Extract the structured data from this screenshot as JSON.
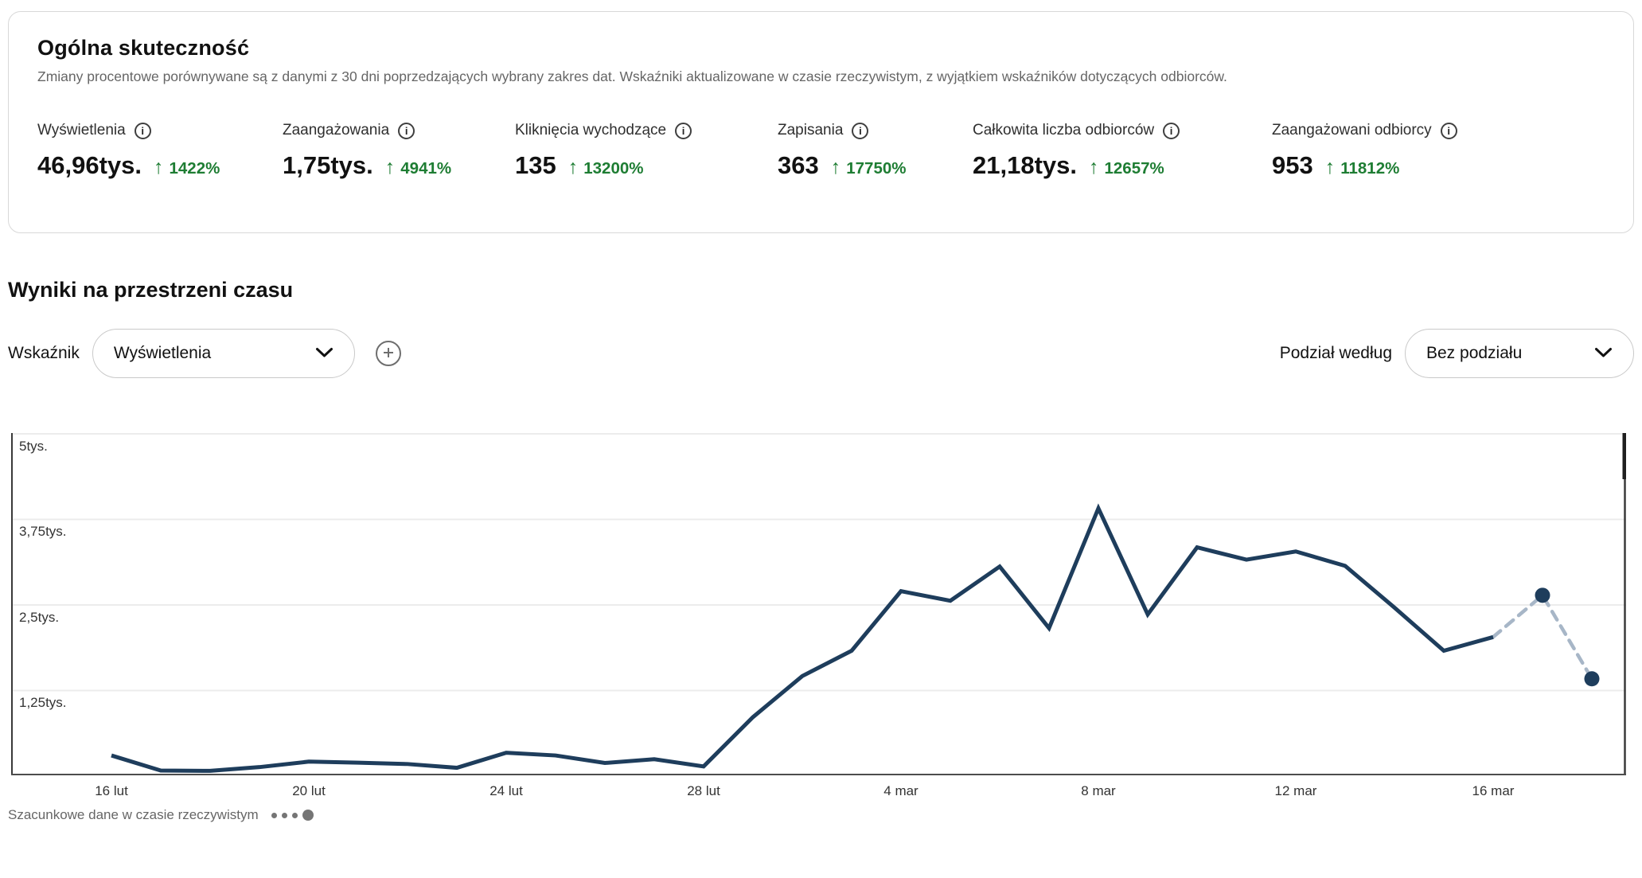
{
  "overview_card": {
    "title": "Ogólna skuteczność",
    "subtitle": "Zmiany procentowe porównywane są z danymi z 30 dni poprzedzających wybrany zakres dat. Wskaźniki aktualizowane w czasie rzeczywistym, z wyjątkiem wskaźników dotyczących odbiorców.",
    "metrics": [
      {
        "label": "Wyświetlenia",
        "value": "46,96tys.",
        "change": "1422%"
      },
      {
        "label": "Zaangażowania",
        "value": "1,75tys.",
        "change": "4941%"
      },
      {
        "label": "Kliknięcia wychodzące",
        "value": "135",
        "change": "13200%"
      },
      {
        "label": "Zapisania",
        "value": "363",
        "change": "17750%"
      },
      {
        "label": "Całkowita liczba odbiorców",
        "value": "21,18tys.",
        "change": "12657%"
      },
      {
        "label": "Zaangażowani odbiorcy",
        "value": "953",
        "change": "11812%"
      }
    ]
  },
  "timeseries_section": {
    "title": "Wyniki na przestrzeni czasu",
    "metric_label": "Wskaźnik",
    "metric_value": "Wyświetlenia",
    "split_label": "Podział według",
    "split_value": "Bez podziału",
    "footer_note": "Szacunkowe dane w czasie rzeczywistym"
  },
  "chart_data": {
    "type": "line",
    "title": "Wyniki na przestrzeni czasu",
    "series_name": "Wyświetlenia",
    "x": [
      "16 lut",
      "17 lut",
      "18 lut",
      "19 lut",
      "20 lut",
      "21 lut",
      "22 lut",
      "23 lut",
      "24 lut",
      "25 lut",
      "26 lut",
      "27 lut",
      "28 lut",
      "1 mar",
      "2 mar",
      "3 mar",
      "4 mar",
      "5 mar",
      "6 mar",
      "7 mar",
      "8 mar",
      "9 mar",
      "10 mar",
      "11 mar",
      "12 mar",
      "13 mar",
      "14 mar",
      "15 mar",
      "16 mar",
      "17 mar",
      "18 mar"
    ],
    "values": [
      290,
      70,
      65,
      120,
      200,
      185,
      165,
      110,
      330,
      290,
      180,
      235,
      130,
      850,
      1450,
      1820,
      2690,
      2550,
      3050,
      2150,
      3900,
      2350,
      3330,
      3150,
      3270,
      3060,
      2450,
      1820,
      2020,
      2630,
      1410
    ],
    "estimated_last_points": 2,
    "x_tick_labels": [
      "16 lut",
      "20 lut",
      "24 lut",
      "28 lut",
      "4 mar",
      "8 mar",
      "12 mar",
      "16 mar"
    ],
    "y_tick_labels": [
      "5tys.",
      "3,75tys.",
      "2,5tys.",
      "1,25tys."
    ],
    "ylim": [
      0,
      5000
    ],
    "grid": "horizontal",
    "legend_position": "none"
  },
  "colors": {
    "positive_green": "#1e7d33",
    "line_navy": "#1e3d5c",
    "estimated_gray_blue": "#a7b6c7",
    "gridline": "#ececec",
    "axis_dark": "#4d4d4d",
    "border_dark": "#3a3a3a"
  }
}
